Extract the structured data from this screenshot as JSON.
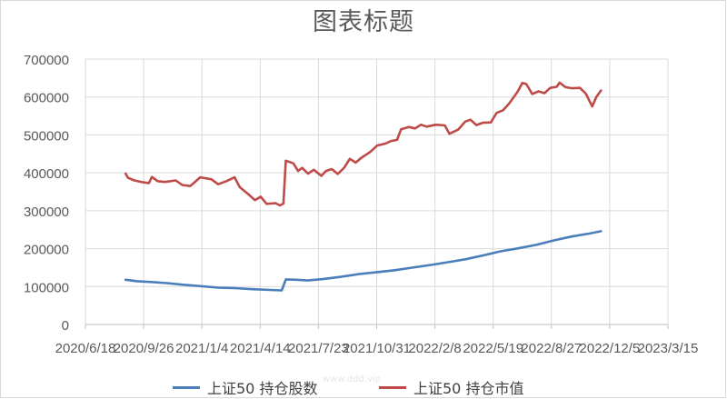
{
  "chart_data": {
    "type": "line",
    "title": "图表标题",
    "xlabel": "",
    "ylabel": "",
    "ylim": [
      0,
      700000
    ],
    "yticks": [
      "0",
      "100000",
      "200000",
      "300000",
      "400000",
      "500000",
      "600000",
      "700000"
    ],
    "xlim": [
      "2020-06-18",
      "2023-03-15"
    ],
    "xticks": [
      "2020/6/18",
      "2020/9/26",
      "2021/1/4",
      "2021/4/14",
      "2021/7/23",
      "2021/10/31",
      "2022/2/8",
      "2022/5/19",
      "2022/8/27",
      "2022/12/5",
      "2023/3/15"
    ],
    "grid": true,
    "legend_position": "bottom",
    "series": [
      {
        "name": "上证50 持仓股数",
        "color": "#4a7ebb",
        "points": [
          [
            "2020-08-26",
            118000
          ],
          [
            "2020-09-15",
            114000
          ],
          [
            "2020-10-10",
            112000
          ],
          [
            "2020-11-05",
            109000
          ],
          [
            "2020-12-01",
            105000
          ],
          [
            "2021-01-04",
            101000
          ],
          [
            "2021-02-01",
            97000
          ],
          [
            "2021-03-01",
            96000
          ],
          [
            "2021-04-01",
            93000
          ],
          [
            "2021-05-01",
            91000
          ],
          [
            "2021-05-21",
            90000
          ],
          [
            "2021-05-28",
            119000
          ],
          [
            "2021-06-15",
            118000
          ],
          [
            "2021-07-05",
            116000
          ],
          [
            "2021-08-01",
            120000
          ],
          [
            "2021-09-01",
            126000
          ],
          [
            "2021-10-01",
            133000
          ],
          [
            "2021-11-01",
            138000
          ],
          [
            "2021-12-01",
            143000
          ],
          [
            "2022-01-01",
            150000
          ],
          [
            "2022-02-01",
            157000
          ],
          [
            "2022-03-01",
            164000
          ],
          [
            "2022-04-01",
            172000
          ],
          [
            "2022-05-01",
            182000
          ],
          [
            "2022-06-01",
            193000
          ],
          [
            "2022-07-01",
            201000
          ],
          [
            "2022-08-01",
            210000
          ],
          [
            "2022-09-01",
            222000
          ],
          [
            "2022-10-01",
            232000
          ],
          [
            "2022-11-01",
            240000
          ],
          [
            "2022-11-20",
            246000
          ]
        ]
      },
      {
        "name": "上证50 持仓市值",
        "color": "#be4b48",
        "points": [
          [
            "2020-08-26",
            398000
          ],
          [
            "2020-08-30",
            387000
          ],
          [
            "2020-09-10",
            380000
          ],
          [
            "2020-09-25",
            375000
          ],
          [
            "2020-10-05",
            373000
          ],
          [
            "2020-10-10",
            389000
          ],
          [
            "2020-10-20",
            378000
          ],
          [
            "2020-11-01",
            376000
          ],
          [
            "2020-11-20",
            380000
          ],
          [
            "2020-12-01",
            368000
          ],
          [
            "2020-12-15",
            365000
          ],
          [
            "2021-01-01",
            388000
          ],
          [
            "2021-01-20",
            383000
          ],
          [
            "2021-02-01",
            370000
          ],
          [
            "2021-02-15",
            378000
          ],
          [
            "2021-03-01",
            388000
          ],
          [
            "2021-03-10",
            362000
          ],
          [
            "2021-03-25",
            343000
          ],
          [
            "2021-04-05",
            328000
          ],
          [
            "2021-04-15",
            337000
          ],
          [
            "2021-04-25",
            318000
          ],
          [
            "2021-05-10",
            320000
          ],
          [
            "2021-05-18",
            314000
          ],
          [
            "2021-05-24",
            319000
          ],
          [
            "2021-05-28",
            432000
          ],
          [
            "2021-06-10",
            425000
          ],
          [
            "2021-06-18",
            405000
          ],
          [
            "2021-06-25",
            413000
          ],
          [
            "2021-07-05",
            398000
          ],
          [
            "2021-07-15",
            408000
          ],
          [
            "2021-07-28",
            392000
          ],
          [
            "2021-08-05",
            405000
          ],
          [
            "2021-08-15",
            410000
          ],
          [
            "2021-08-25",
            397000
          ],
          [
            "2021-09-05",
            413000
          ],
          [
            "2021-09-15",
            437000
          ],
          [
            "2021-09-25",
            427000
          ],
          [
            "2021-10-05",
            440000
          ],
          [
            "2021-10-20",
            455000
          ],
          [
            "2021-11-01",
            472000
          ],
          [
            "2021-11-15",
            477000
          ],
          [
            "2021-11-25",
            484000
          ],
          [
            "2021-12-05",
            487000
          ],
          [
            "2021-12-12",
            515000
          ],
          [
            "2021-12-25",
            521000
          ],
          [
            "2022-01-05",
            517000
          ],
          [
            "2022-01-15",
            527000
          ],
          [
            "2022-01-25",
            522000
          ],
          [
            "2022-02-10",
            527000
          ],
          [
            "2022-02-25",
            525000
          ],
          [
            "2022-03-05",
            503000
          ],
          [
            "2022-03-20",
            514000
          ],
          [
            "2022-04-01",
            535000
          ],
          [
            "2022-04-10",
            540000
          ],
          [
            "2022-04-20",
            526000
          ],
          [
            "2022-05-01",
            532000
          ],
          [
            "2022-05-15",
            533000
          ],
          [
            "2022-05-25",
            558000
          ],
          [
            "2022-06-05",
            565000
          ],
          [
            "2022-06-15",
            582000
          ],
          [
            "2022-06-30",
            614000
          ],
          [
            "2022-07-08",
            637000
          ],
          [
            "2022-07-15",
            634000
          ],
          [
            "2022-07-25",
            608000
          ],
          [
            "2022-08-05",
            615000
          ],
          [
            "2022-08-15",
            610000
          ],
          [
            "2022-08-25",
            624000
          ],
          [
            "2022-09-05",
            627000
          ],
          [
            "2022-09-10",
            638000
          ],
          [
            "2022-09-20",
            626000
          ],
          [
            "2022-10-01",
            623000
          ],
          [
            "2022-10-15",
            624000
          ],
          [
            "2022-10-25",
            609000
          ],
          [
            "2022-11-05",
            575000
          ],
          [
            "2022-11-12",
            600000
          ],
          [
            "2022-11-20",
            617000
          ]
        ]
      }
    ]
  },
  "watermark": "www.ddd.vip"
}
